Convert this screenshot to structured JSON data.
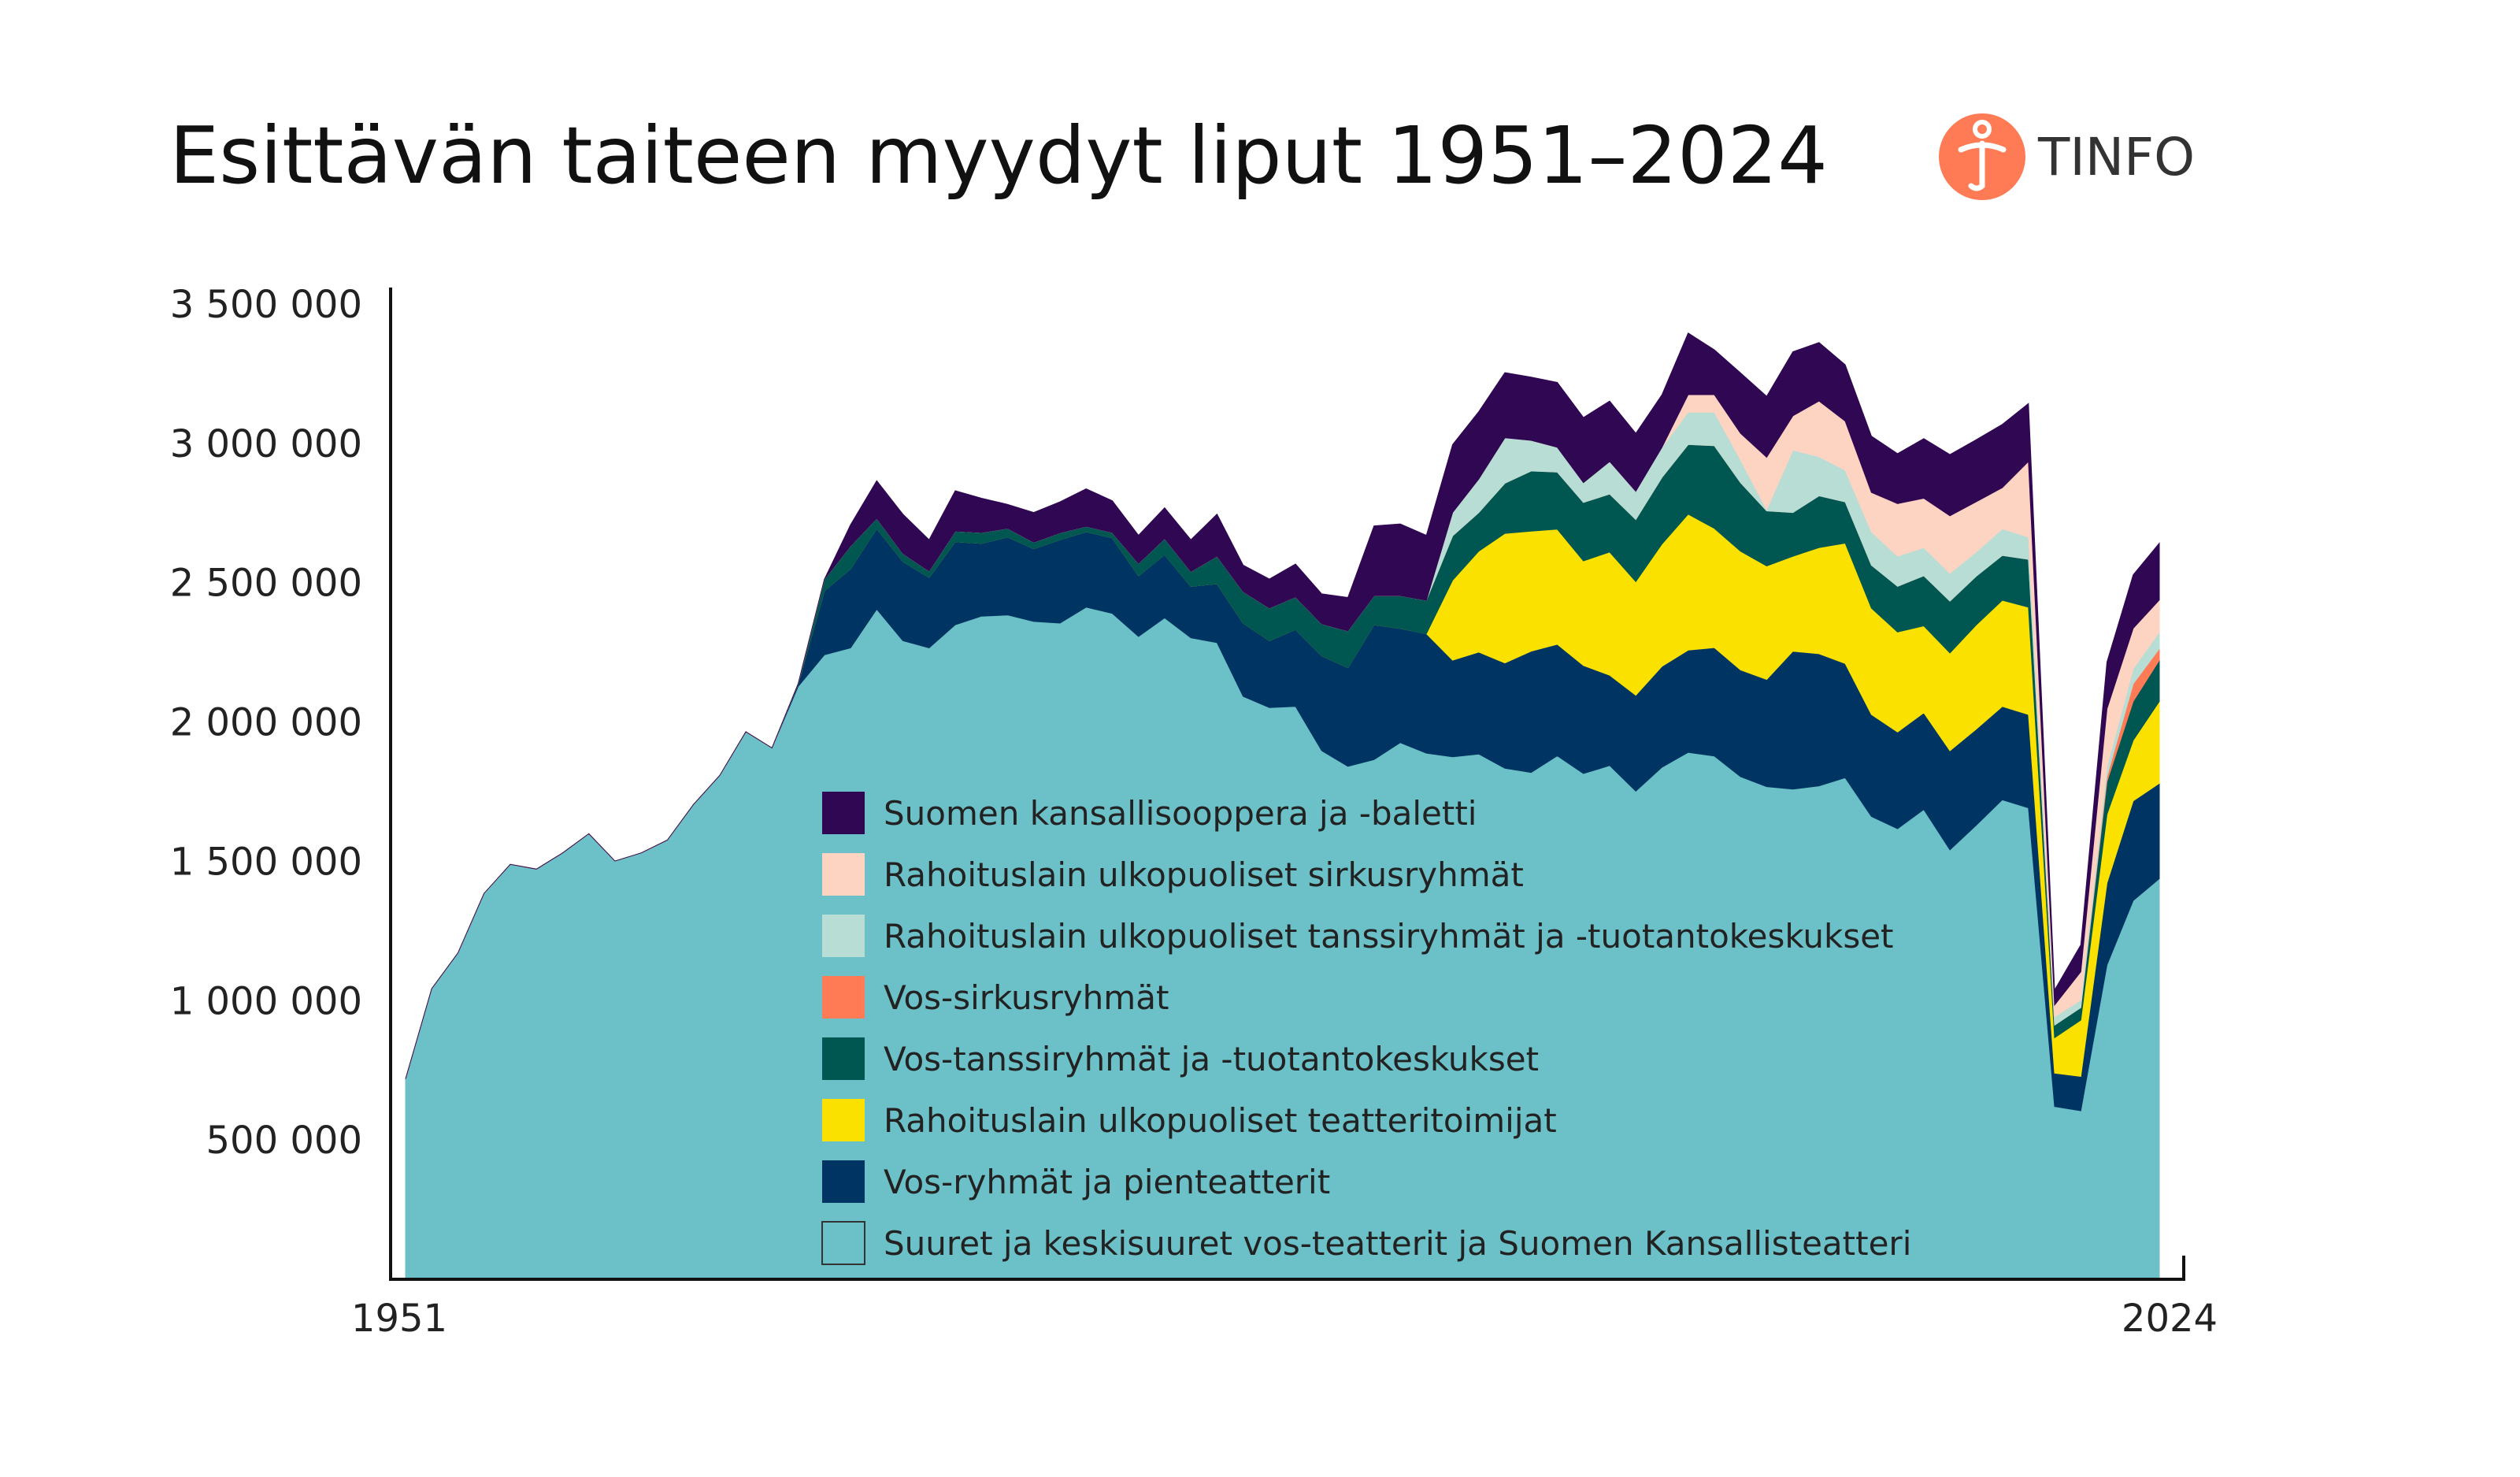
{
  "header": {
    "title": "Esittävän taiteen myydyt liput 1951–2024",
    "logo_text": "TINFO",
    "logo_color": "#FF7B55"
  },
  "chart_data": {
    "type": "area",
    "stacked": true,
    "title": "Esittävän taiteen myydyt liput 1951–2024",
    "xlabel": "",
    "ylabel": "",
    "x_tick_labels": [
      "1951",
      "2024"
    ],
    "y_tick_labels": [
      "500 000",
      "1 000 000",
      "1 500 000",
      "2 000 000",
      "2 500 000",
      "3 000 000",
      "3 500 000"
    ],
    "y_ticks": [
      500000,
      1000000,
      1500000,
      2000000,
      2500000,
      3000000,
      3500000
    ],
    "ylim": [
      0,
      3500000
    ],
    "grid": false,
    "legend_position": "center-bottom inside",
    "x": [
      1951,
      1952,
      1953,
      1954,
      1955,
      1956,
      1958,
      1959,
      1960,
      1961,
      1962,
      1963,
      1964,
      1965,
      1966,
      1967,
      1968,
      1970,
      1971,
      1972,
      1973,
      1974,
      1975,
      1976,
      1977,
      1978,
      1979,
      1980,
      1982,
      1983,
      1984,
      1985,
      1986,
      1987,
      1988,
      1989,
      1990,
      1991,
      1992,
      1993,
      1995,
      1996,
      1997,
      1998,
      1999,
      2000,
      2001,
      2002,
      2003,
      2004,
      2005,
      2007,
      2008,
      2009,
      2010,
      2011,
      2012,
      2013,
      2014,
      2015,
      2016,
      2017,
      2019,
      2020,
      2021,
      2022,
      2023,
      2024
    ],
    "series": [
      {
        "name": "Suuret ja keskisuuret vos-teatterit ja Suomen Kansallisteatteri",
        "color": "#6CC1C8",
        "values": [
          719000,
          1043000,
          1171000,
          1385000,
          1489000,
          1472000,
          1530000,
          1599000,
          1501000,
          1530000,
          1576000,
          1704000,
          1808000,
          1965000,
          1907000,
          2128000,
          2241000,
          2266000,
          2405000,
          2292000,
          2266000,
          2349000,
          2380000,
          2384000,
          2361000,
          2355000,
          2412000,
          2390000,
          2307000,
          2374000,
          2302000,
          2285000,
          2092000,
          2052000,
          2056000,
          1897000,
          1841000,
          1865000,
          1926000,
          1888000,
          1875000,
          1885000,
          1834000,
          1819000,
          1879000,
          1815000,
          1844000,
          1752000,
          1838000,
          1891000,
          1878000,
          1804000,
          1768000,
          1759000,
          1771000,
          1800000,
          1661000,
          1617000,
          1686000,
          1541000,
          1629000,
          1721000,
          1692000,
          620000,
          605000,
          1128000,
          1359000,
          1438000
        ]
      },
      {
        "name": "Vos-ryhmät ja pienteatterit",
        "color": "#003563",
        "values": [
          0,
          0,
          0,
          0,
          0,
          0,
          0,
          0,
          0,
          0,
          0,
          0,
          0,
          0,
          0,
          10000,
          230000,
          284000,
          290000,
          284000,
          253000,
          298000,
          261000,
          280000,
          261000,
          299000,
          271000,
          271000,
          218000,
          227000,
          185000,
          211000,
          263000,
          240000,
          276000,
          341000,
          354000,
          484000,
          410000,
          429000,
          347000,
          366000,
          378000,
          435000,
          400000,
          388000,
          324000,
          344000,
          362000,
          367000,
          389000,
          383000,
          385000,
          495000,
          474000,
          410000,
          366000,
          347000,
          347000,
          356000,
          345000,
          335000,
          335000,
          120000,
          123000,
          294000,
          358000,
          342000
        ]
      },
      {
        "name": "Rahoituslain ulkopuoliset teatteritoimijat",
        "color": "#FAE100",
        "values": [
          0,
          0,
          0,
          0,
          0,
          0,
          0,
          0,
          0,
          0,
          0,
          0,
          0,
          0,
          0,
          0,
          0,
          0,
          0,
          0,
          0,
          0,
          0,
          0,
          0,
          0,
          0,
          0,
          0,
          0,
          0,
          0,
          0,
          0,
          0,
          0,
          0,
          0,
          0,
          0,
          287000,
          362000,
          465000,
          431000,
          413000,
          375000,
          442000,
          408000,
          439000,
          488000,
          428000,
          426000,
          407000,
          341000,
          381000,
          432000,
          382000,
          359000,
          312000,
          351000,
          374000,
          381000,
          385000,
          127000,
          202000,
          247000,
          217000,
          294000
        ]
      },
      {
        "name": "Vos-tanssiryhmät ja -tuotantokeskukset",
        "color": "#005752",
        "values": [
          0,
          0,
          0,
          0,
          0,
          0,
          0,
          0,
          0,
          0,
          0,
          0,
          0,
          0,
          0,
          0,
          41000,
          82000,
          36000,
          29000,
          23000,
          38000,
          39000,
          31000,
          23000,
          25000,
          19000,
          19000,
          44000,
          57000,
          53000,
          99000,
          113000,
          117000,
          117000,
          114000,
          132000,
          104000,
          117000,
          120000,
          159000,
          139000,
          180000,
          216000,
          205000,
          210000,
          208000,
          223000,
          239000,
          250000,
          297000,
          246000,
          198000,
          157000,
          186000,
          148000,
          154000,
          164000,
          180000,
          186000,
          175000,
          161000,
          172000,
          45000,
          45000,
          117000,
          140000,
          148000
        ]
      },
      {
        "name": "Vos-sirkusryhmät",
        "color": "#FF7B55",
        "values": [
          0,
          0,
          0,
          0,
          0,
          0,
          0,
          0,
          0,
          0,
          0,
          0,
          0,
          0,
          0,
          0,
          0,
          0,
          0,
          0,
          0,
          0,
          0,
          0,
          0,
          0,
          0,
          0,
          0,
          0,
          0,
          0,
          0,
          0,
          0,
          0,
          0,
          0,
          0,
          0,
          0,
          0,
          0,
          0,
          0,
          0,
          0,
          0,
          0,
          0,
          0,
          0,
          0,
          0,
          0,
          0,
          0,
          0,
          0,
          0,
          0,
          0,
          0,
          0,
          0,
          18000,
          63000,
          41000
        ]
      },
      {
        "name": "Rahoituslain ulkopuoliset tanssiryhmät ja -tuotantokeskukset",
        "color": "#B8DDD4",
        "values": [
          0,
          0,
          0,
          0,
          0,
          0,
          0,
          0,
          0,
          0,
          0,
          0,
          0,
          0,
          0,
          0,
          0,
          0,
          0,
          0,
          0,
          0,
          0,
          0,
          0,
          0,
          0,
          0,
          0,
          0,
          0,
          0,
          0,
          0,
          0,
          0,
          0,
          0,
          0,
          0,
          84000,
          120000,
          163000,
          110000,
          89000,
          71000,
          117000,
          101000,
          108000,
          116000,
          120000,
          82000,
          4000,
          224000,
          140000,
          114000,
          120000,
          108000,
          101000,
          100000,
          87000,
          95000,
          80000,
          30000,
          27000,
          36000,
          54000,
          60000
        ]
      },
      {
        "name": "Rahoituslain ulkopuoliset sirkusryhmät",
        "color": "#FDD3C2",
        "values": [
          0,
          0,
          0,
          0,
          0,
          0,
          0,
          0,
          0,
          0,
          0,
          0,
          0,
          0,
          0,
          0,
          0,
          0,
          0,
          0,
          0,
          0,
          0,
          0,
          0,
          0,
          0,
          0,
          0,
          0,
          0,
          0,
          0,
          0,
          0,
          0,
          0,
          0,
          0,
          0,
          0,
          0,
          0,
          0,
          0,
          0,
          0,
          0,
          0,
          63000,
          63000,
          95000,
          188000,
          123000,
          200000,
          176000,
          141000,
          189000,
          177000,
          206000,
          180000,
          148000,
          271000,
          42000,
          102000,
          207000,
          145000,
          115000
        ]
      },
      {
        "name": "Suomen kansallisooppera ja -baletti",
        "color": "#300752",
        "values": [
          0,
          0,
          0,
          0,
          0,
          0,
          0,
          0,
          0,
          0,
          0,
          0,
          0,
          0,
          0,
          0,
          0,
          76000,
          135000,
          141000,
          112000,
          145000,
          123000,
          86000,
          107000,
          111000,
          135000,
          114000,
          101000,
          111000,
          114000,
          151000,
          95000,
          104000,
          118000,
          108000,
          120000,
          251000,
          258000,
          233000,
          244000,
          242000,
          234000,
          227000,
          233000,
          234000,
          217000,
          208000,
          189000,
          221000,
          161000,
          217000,
          219000,
          230000,
          210000,
          202000,
          202000,
          179000,
          214000,
          220000,
          223000,
          227000,
          208000,
          54000,
          96000,
          168000,
          192000,
          204000
        ]
      }
    ]
  }
}
